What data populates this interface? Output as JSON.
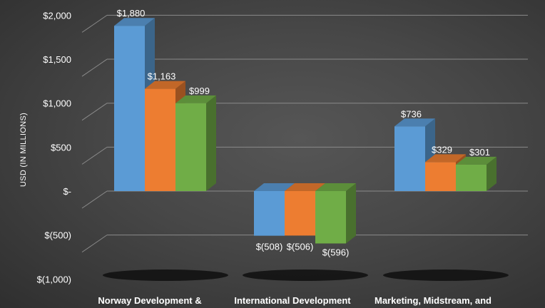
{
  "chart_data": {
    "type": "bar",
    "title": "",
    "xlabel": "",
    "ylabel": "USD (IN MILLIONS)",
    "ylim": [
      -1000,
      2000
    ],
    "yticks": [
      2000,
      1500,
      1000,
      500,
      0,
      -500,
      -1000
    ],
    "ytick_labels": [
      "$2,000",
      "$1,500",
      "$1,000",
      "$500",
      "$-",
      "$(500)",
      "$(1,000)"
    ],
    "grid": true,
    "legend": "none",
    "categories": [
      "Norway Development &",
      "International Development",
      "Marketing, Midstream, and"
    ],
    "series": [
      {
        "color": "#5b9bd5",
        "values": [
          1880,
          -508,
          736
        ],
        "labels": [
          "$1,880",
          "$(508)",
          "$736"
        ]
      },
      {
        "color": "#ed7d31",
        "values": [
          1163,
          -506,
          329
        ],
        "labels": [
          "$1,163",
          "$(506)",
          "$329"
        ]
      },
      {
        "color": "#70ad47",
        "values": [
          999,
          -596,
          301
        ],
        "labels": [
          "$999",
          "$(596)",
          "$301"
        ]
      }
    ]
  }
}
